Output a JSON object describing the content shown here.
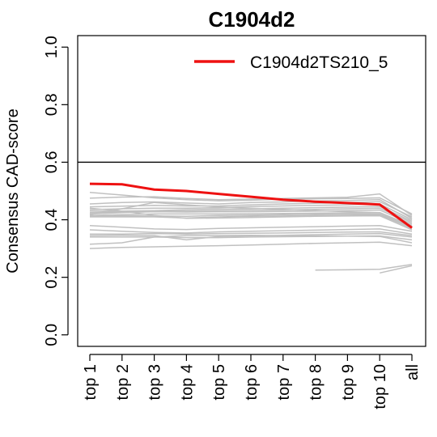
{
  "chart_data": {
    "type": "line",
    "title": "C1904d2",
    "ylabel": "Consensus CAD-score",
    "xlabel": "",
    "categories": [
      "top 1",
      "top 2",
      "top 3",
      "top 4",
      "top 5",
      "top 6",
      "top 7",
      "top 8",
      "top 9",
      "top 10",
      "all"
    ],
    "yticks": [
      "0.0",
      "0.2",
      "0.4",
      "0.6",
      "0.8",
      "1.0"
    ],
    "ylim": [
      -0.04,
      1.04
    ],
    "reference_line_y": 0.6,
    "legend_position": "top-right",
    "grid": false,
    "colors": {
      "highlight": "#ee1111",
      "background_series": "#c0c0c0",
      "axis": "#000000"
    },
    "highlight_series": {
      "name": "C1904d2TS210_5",
      "values": [
        0.525,
        0.523,
        0.505,
        0.5,
        0.49,
        0.48,
        0.47,
        0.463,
        0.458,
        0.453,
        0.372
      ]
    },
    "background_series": [
      [
        0.495,
        0.486,
        0.476,
        0.47,
        0.466,
        0.468,
        0.471,
        0.473,
        0.474,
        0.476,
        0.42
      ],
      [
        0.475,
        0.479,
        0.48,
        0.474,
        0.47,
        0.472,
        0.474,
        0.476,
        0.478,
        0.49,
        0.415
      ],
      [
        0.455,
        0.46,
        0.462,
        0.458,
        0.455,
        0.46,
        0.462,
        0.465,
        0.467,
        0.47,
        0.405
      ],
      [
        0.445,
        0.447,
        0.45,
        0.448,
        0.448,
        0.452,
        0.455,
        0.457,
        0.46,
        0.463,
        0.41
      ],
      [
        0.435,
        0.438,
        0.44,
        0.44,
        0.442,
        0.446,
        0.448,
        0.45,
        0.452,
        0.455,
        0.4
      ],
      [
        0.43,
        0.43,
        0.432,
        0.435,
        0.437,
        0.438,
        0.44,
        0.442,
        0.444,
        0.446,
        0.395
      ],
      [
        0.425,
        0.427,
        0.43,
        0.43,
        0.432,
        0.433,
        0.434,
        0.436,
        0.438,
        0.44,
        0.39
      ],
      [
        0.42,
        0.425,
        0.428,
        0.427,
        0.428,
        0.428,
        0.429,
        0.43,
        0.432,
        0.434,
        0.385
      ],
      [
        0.418,
        0.438,
        0.46,
        0.452,
        0.445,
        0.44,
        0.436,
        0.432,
        0.428,
        0.425,
        0.38
      ],
      [
        0.415,
        0.418,
        0.42,
        0.42,
        0.42,
        0.421,
        0.422,
        0.423,
        0.424,
        0.425,
        0.378
      ],
      [
        0.412,
        0.414,
        0.413,
        0.412,
        0.415,
        0.416,
        0.418,
        0.419,
        0.42,
        0.42,
        0.375
      ],
      [
        0.41,
        0.41,
        0.41,
        0.406,
        0.41,
        0.412,
        0.413,
        0.415,
        0.416,
        0.418,
        0.37
      ],
      [
        0.44,
        0.43,
        0.415,
        0.405,
        0.406,
        0.408,
        0.41,
        0.412,
        0.413,
        0.414,
        0.365
      ],
      [
        0.38,
        0.374,
        0.368,
        0.366,
        0.37,
        0.372,
        0.374,
        0.376,
        0.378,
        0.38,
        0.36
      ],
      [
        0.365,
        0.36,
        0.356,
        0.354,
        0.358,
        0.36,
        0.362,
        0.364,
        0.366,
        0.368,
        0.35
      ],
      [
        0.35,
        0.35,
        0.352,
        0.35,
        0.352,
        0.353,
        0.354,
        0.356,
        0.357,
        0.358,
        0.345
      ],
      [
        0.345,
        0.346,
        0.345,
        0.33,
        0.342,
        0.344,
        0.346,
        0.348,
        0.35,
        0.352,
        0.34
      ],
      [
        0.34,
        0.34,
        0.34,
        0.338,
        0.338,
        0.34,
        0.341,
        0.342,
        0.343,
        0.344,
        0.33
      ],
      [
        0.315,
        0.32,
        0.34,
        0.345,
        0.345,
        0.346,
        0.345,
        0.344,
        0.343,
        0.342,
        0.32
      ],
      [
        0.3,
        0.304,
        0.306,
        0.308,
        0.31,
        0.312,
        0.315,
        0.318,
        0.32,
        0.322,
        0.31
      ],
      [
        null,
        null,
        null,
        null,
        null,
        null,
        null,
        0.225,
        0.226,
        0.228,
        0.245
      ],
      [
        null,
        null,
        null,
        null,
        null,
        null,
        null,
        null,
        null,
        0.215,
        0.24
      ]
    ]
  }
}
